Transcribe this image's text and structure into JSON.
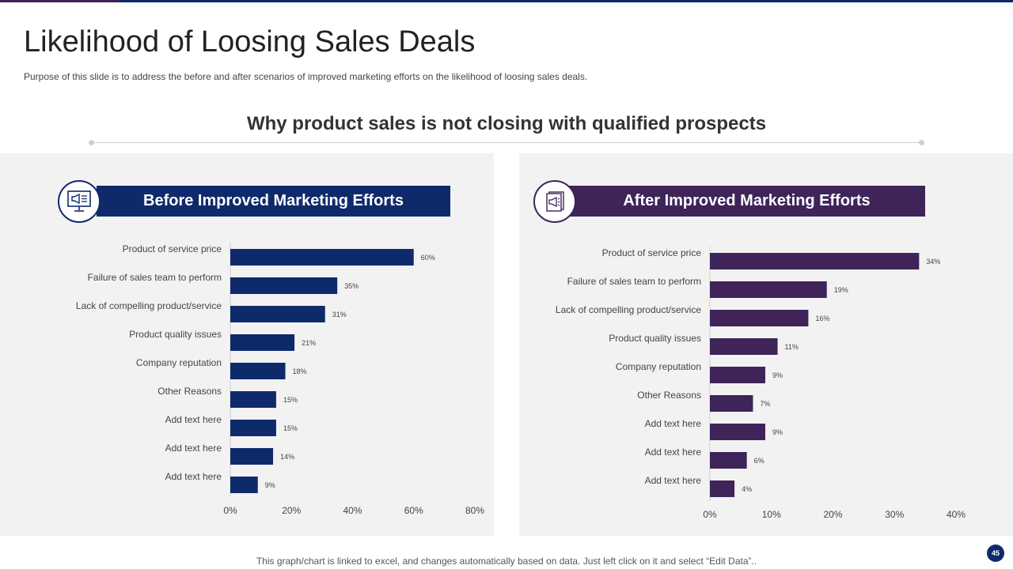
{
  "title": "Likelihood of Loosing Sales Deals",
  "subtitle": "Purpose of this slide is to address the before and after scenarios of improved  marketing efforts  on the likelihood of loosing sales deals.",
  "section_heading": "Why product sales is not closing with qualified prospects",
  "before_banner": "Before Improved Marketing Efforts",
  "after_banner": "After Improved Marketing Efforts",
  "footer_note": "This graph/chart is linked to excel,  and changes automatically based on data. Just left click on it and select “Edit Data”..",
  "page_number": "45",
  "colors": {
    "before": "#0f2a6b",
    "after": "#3e2459",
    "panel": "#f2f2f2"
  },
  "icons": {
    "before": "megaphone-monitor-icon",
    "after": "megaphone-document-icon"
  },
  "chart_data": [
    {
      "type": "bar",
      "orientation": "horizontal",
      "title": "Before Improved Marketing Efforts",
      "categories": [
        "Product of service price",
        "Failure of sales team to perform",
        "Lack of compelling product/service",
        "Product quality issues",
        "Company reputation",
        "Other Reasons",
        "Add text here",
        "Add text here",
        "Add text here"
      ],
      "values": [
        60,
        35,
        31,
        21,
        18,
        15,
        15,
        14,
        9
      ],
      "labels": [
        "60%",
        "35%",
        "31%",
        "21%",
        "18%",
        "15%",
        "15%",
        "14%",
        "9%"
      ],
      "xlim": [
        0,
        80
      ],
      "ticks": [
        "0%",
        "20%",
        "40%",
        "60%",
        "80%"
      ],
      "color": "#0f2a6b"
    },
    {
      "type": "bar",
      "orientation": "horizontal",
      "title": "After Improved Marketing Efforts",
      "categories": [
        "Product of service price",
        "Failure of sales team to perform",
        "Lack of compelling product/service",
        "Product quality issues",
        "Company reputation",
        "Other Reasons",
        "Add text here",
        "Add text here",
        "Add text here"
      ],
      "values": [
        34,
        19,
        16,
        11,
        9,
        7,
        9,
        6,
        4
      ],
      "labels": [
        "34%",
        "19%",
        "16%",
        "11%",
        "9%",
        "7%",
        "9%",
        "6%",
        "4%"
      ],
      "xlim": [
        0,
        40
      ],
      "ticks": [
        "0%",
        "10%",
        "20%",
        "30%",
        "40%"
      ],
      "color": "#3e2459"
    }
  ]
}
